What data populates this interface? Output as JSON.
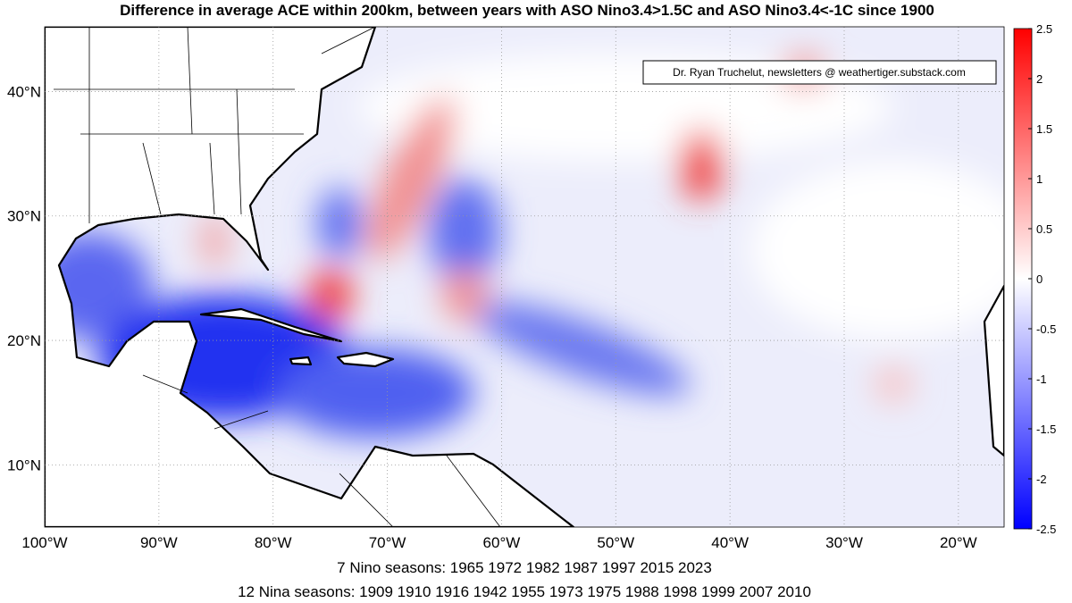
{
  "title": "Difference in average ACE within 200km, between years with ASO Nino3.4>1.5C and ASO Nino3.4<-1C since 1900",
  "credit": "Dr. Ryan Truchelut, newsletters @ weathertiger.substack.com",
  "map": {
    "lon_lim": [
      -100,
      -16
    ],
    "lat_lim": [
      5,
      45.2
    ],
    "lon_ticks": [
      {
        "value": -100,
        "label": "100°W"
      },
      {
        "value": -90,
        "label": "90°W"
      },
      {
        "value": -80,
        "label": "80°W"
      },
      {
        "value": -70,
        "label": "70°W"
      },
      {
        "value": -60,
        "label": "60°W"
      },
      {
        "value": -50,
        "label": "50°W"
      },
      {
        "value": -40,
        "label": "40°W"
      },
      {
        "value": -30,
        "label": "30°W"
      },
      {
        "value": -20,
        "label": "20°W"
      }
    ],
    "lat_ticks": [
      {
        "value": 10,
        "label": "10°N"
      },
      {
        "value": 20,
        "label": "20°N"
      },
      {
        "value": 30,
        "label": "30°N"
      },
      {
        "value": 40,
        "label": "40°N"
      }
    ]
  },
  "colorbar": {
    "lim": [
      -2.5,
      2.5
    ],
    "ticks": [
      -2.5,
      -2,
      -1.5,
      -1,
      -0.5,
      0,
      0.5,
      1,
      1.5,
      2,
      2.5
    ],
    "colors": [
      "#0000ff",
      "#ffffff",
      "#ff0000"
    ]
  },
  "footer": [
    "7 Nino seasons: 1965   1972   1982   1987   1997   2015   2023",
    "12 Nina seasons: 1909   1910   1916   1942   1955   1973   1975   1988   1998   1999   2007   2010"
  ]
}
